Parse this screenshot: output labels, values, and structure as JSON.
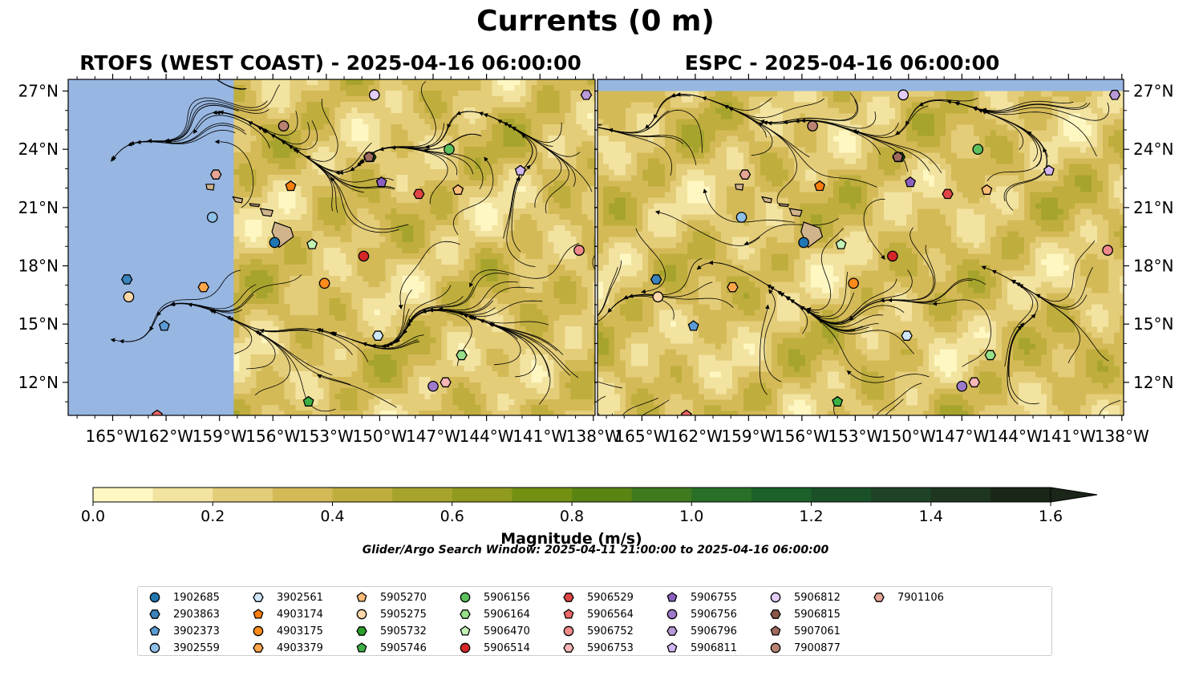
{
  "figure": {
    "title": "Currents (0 m)",
    "search_window": "Glider/Argo Search Window: 2025-04-11 21:00:00 to 2025-04-16 06:00:00"
  },
  "colors": {
    "land": "#d2b48c",
    "no_data_ocean": "#97b6e1",
    "colormap": [
      "#fef7c2",
      "#f2e3a0",
      "#e4cd79",
      "#d4ba57",
      "#bfae3d",
      "#a7a42d",
      "#8f9a1e",
      "#739012",
      "#5a8513",
      "#3f7a1f",
      "#2a6f27",
      "#1b6129",
      "#1a5128",
      "#1f4326",
      "#1e3520",
      "#1a2618"
    ]
  },
  "chart_data": [
    {
      "type": "heatmap",
      "title": "RTOFS (WEST COAST) - 2025-04-16 06:00:00",
      "xlim": [
        -167.5,
        -137.9
      ],
      "ylim": [
        10.3,
        27.6
      ],
      "xticks": [
        -165,
        -162,
        -159,
        -156,
        -153,
        -150,
        -147,
        -144,
        -141,
        -138
      ],
      "xtick_labels": [
        "165°W",
        "162°W",
        "159°W",
        "156°W",
        "153°W",
        "150°W",
        "147°W",
        "144°W",
        "141°W",
        "138°W"
      ],
      "yticks": [
        12,
        15,
        18,
        21,
        24,
        27
      ],
      "ytick_labels": [
        "12°N",
        "15°N",
        "18°N",
        "21°N",
        "24°N",
        "27°N"
      ],
      "yaxis_side": "left",
      "data_extent_lon_west": -158.2,
      "streamlines": true,
      "platforms": [
        {
          "id": "1902685",
          "lon": -155.9,
          "lat": 19.2
        },
        {
          "id": "2903863",
          "lon": -164.2,
          "lat": 17.3
        },
        {
          "id": "3902373",
          "lon": -162.1,
          "lat": 14.9
        },
        {
          "id": "3902559",
          "lon": -159.4,
          "lat": 20.5
        },
        {
          "id": "3902561",
          "lon": -150.1,
          "lat": 14.4
        },
        {
          "id": "4903174",
          "lon": -155.0,
          "lat": 22.1
        },
        {
          "id": "4903175",
          "lon": -153.1,
          "lat": 17.1
        },
        {
          "id": "4903379",
          "lon": -159.9,
          "lat": 16.9
        },
        {
          "id": "5905270",
          "lon": -145.6,
          "lat": 21.9
        },
        {
          "id": "5905275",
          "lon": -164.1,
          "lat": 16.4
        },
        {
          "id": "5905732",
          "lon": -150.5,
          "lat": 23.6
        },
        {
          "id": "5905746",
          "lon": -154.0,
          "lat": 11.0
        },
        {
          "id": "5906156",
          "lon": -146.1,
          "lat": 24.0
        },
        {
          "id": "5906164",
          "lon": -145.4,
          "lat": 13.4
        },
        {
          "id": "5906470",
          "lon": -153.8,
          "lat": 19.1
        },
        {
          "id": "5906514",
          "lon": -150.9,
          "lat": 18.5
        },
        {
          "id": "5906529",
          "lon": -147.8,
          "lat": 21.7
        },
        {
          "id": "5906564",
          "lon": -162.5,
          "lat": 10.3
        },
        {
          "id": "5906752",
          "lon": -138.8,
          "lat": 18.8
        },
        {
          "id": "5906753",
          "lon": -146.3,
          "lat": 12.0
        },
        {
          "id": "5906755",
          "lon": -149.9,
          "lat": 22.3
        },
        {
          "id": "5906756",
          "lon": -147.0,
          "lat": 11.8
        },
        {
          "id": "5906796",
          "lon": -138.4,
          "lat": 26.8
        },
        {
          "id": "5906811",
          "lon": -142.1,
          "lat": 22.9
        },
        {
          "id": "5906812",
          "lon": -150.3,
          "lat": 26.8
        },
        {
          "id": "5906815",
          "lon": -150.6,
          "lat": 23.6
        },
        {
          "id": "5907061",
          "lon": -150.6,
          "lat": 23.6
        },
        {
          "id": "7900877",
          "lon": -155.4,
          "lat": 25.2
        },
        {
          "id": "7901106",
          "lon": -159.2,
          "lat": 22.7
        }
      ]
    },
    {
      "type": "heatmap",
      "title": "ESPC - 2025-04-16 06:00:00",
      "xlim": [
        -167.5,
        -137.9
      ],
      "ylim": [
        10.3,
        27.6
      ],
      "xticks": [
        -165,
        -162,
        -159,
        -156,
        -153,
        -150,
        -147,
        -144,
        -141,
        -138
      ],
      "xtick_labels": [
        "165°W",
        "162°W",
        "159°W",
        "156°W",
        "153°W",
        "150°W",
        "147°W",
        "144°W",
        "141°W",
        "138°W"
      ],
      "yticks": [
        12,
        15,
        18,
        21,
        24,
        27
      ],
      "ytick_labels": [
        "12°N",
        "15°N",
        "18°N",
        "21°N",
        "24°N",
        "27°N"
      ],
      "yaxis_side": "right",
      "data_extent_lat_north": 27.0,
      "streamlines": true,
      "platforms": [
        {
          "id": "1902685",
          "lon": -155.9,
          "lat": 19.2
        },
        {
          "id": "2903863",
          "lon": -164.2,
          "lat": 17.3
        },
        {
          "id": "3902373",
          "lon": -162.1,
          "lat": 14.9
        },
        {
          "id": "3902559",
          "lon": -159.4,
          "lat": 20.5
        },
        {
          "id": "3902561",
          "lon": -150.1,
          "lat": 14.4
        },
        {
          "id": "4903174",
          "lon": -155.0,
          "lat": 22.1
        },
        {
          "id": "4903175",
          "lon": -153.1,
          "lat": 17.1
        },
        {
          "id": "4903379",
          "lon": -159.9,
          "lat": 16.9
        },
        {
          "id": "5905270",
          "lon": -145.6,
          "lat": 21.9
        },
        {
          "id": "5905275",
          "lon": -164.1,
          "lat": 16.4
        },
        {
          "id": "5905732",
          "lon": -150.5,
          "lat": 23.6
        },
        {
          "id": "5905746",
          "lon": -154.0,
          "lat": 11.0
        },
        {
          "id": "5906156",
          "lon": -146.1,
          "lat": 24.0
        },
        {
          "id": "5906164",
          "lon": -145.4,
          "lat": 13.4
        },
        {
          "id": "5906470",
          "lon": -153.8,
          "lat": 19.1
        },
        {
          "id": "5906514",
          "lon": -150.9,
          "lat": 18.5
        },
        {
          "id": "5906529",
          "lon": -147.8,
          "lat": 21.7
        },
        {
          "id": "5906564",
          "lon": -162.5,
          "lat": 10.3
        },
        {
          "id": "5906752",
          "lon": -138.8,
          "lat": 18.8
        },
        {
          "id": "5906753",
          "lon": -146.3,
          "lat": 12.0
        },
        {
          "id": "5906755",
          "lon": -149.9,
          "lat": 22.3
        },
        {
          "id": "5906756",
          "lon": -147.0,
          "lat": 11.8
        },
        {
          "id": "5906796",
          "lon": -138.4,
          "lat": 26.8
        },
        {
          "id": "5906811",
          "lon": -142.1,
          "lat": 22.9
        },
        {
          "id": "5906812",
          "lon": -150.3,
          "lat": 26.8
        },
        {
          "id": "5906815",
          "lon": -150.6,
          "lat": 23.6
        },
        {
          "id": "5907061",
          "lon": -150.6,
          "lat": 23.6
        },
        {
          "id": "7900877",
          "lon": -155.4,
          "lat": 25.2
        },
        {
          "id": "7901106",
          "lon": -159.2,
          "lat": 22.7
        }
      ]
    }
  ],
  "colorbar": {
    "label": "Magnitude (m/s)",
    "min": 0.0,
    "max": 1.6,
    "ticks": [
      0.0,
      0.2,
      0.4,
      0.6,
      0.8,
      1.0,
      1.2,
      1.4,
      1.6
    ],
    "tick_labels": [
      "0.0",
      "0.2",
      "0.4",
      "0.6",
      "0.8",
      "1.0",
      "1.2",
      "1.4",
      "1.6"
    ],
    "extend": "max"
  },
  "legend": {
    "columns": 9,
    "entries": [
      {
        "label": "1902685",
        "marker": "circle",
        "color": "#1f77b4"
      },
      {
        "label": "2903863",
        "marker": "hexagon",
        "color": "#3a83bd"
      },
      {
        "label": "3902373",
        "marker": "pentagon",
        "color": "#5a9bd4"
      },
      {
        "label": "3902559",
        "marker": "circle",
        "color": "#8fc0e8"
      },
      {
        "label": "3902561",
        "marker": "hexagon",
        "color": "#cfe6f7"
      },
      {
        "label": "4903174",
        "marker": "pentagon",
        "color": "#ff7f0e"
      },
      {
        "label": "4903175",
        "marker": "circle",
        "color": "#ff8c1a"
      },
      {
        "label": "4903379",
        "marker": "hexagon",
        "color": "#ffa64d"
      },
      {
        "label": "5905270",
        "marker": "pentagon",
        "color": "#ffbb78"
      },
      {
        "label": "5905275",
        "marker": "circle",
        "color": "#ffd7a8"
      },
      {
        "label": "5905732",
        "marker": "hexagon",
        "color": "#2ca02c"
      },
      {
        "label": "5905746",
        "marker": "pentagon",
        "color": "#3cb043"
      },
      {
        "label": "5906156",
        "marker": "circle",
        "color": "#5cc05c"
      },
      {
        "label": "5906164",
        "marker": "hexagon",
        "color": "#98df8a"
      },
      {
        "label": "5906470",
        "marker": "pentagon",
        "color": "#c2f2b5"
      },
      {
        "label": "5906514",
        "marker": "circle",
        "color": "#d62728"
      },
      {
        "label": "5906529",
        "marker": "hexagon",
        "color": "#e04545"
      },
      {
        "label": "5906564",
        "marker": "pentagon",
        "color": "#ee6666"
      },
      {
        "label": "5906752",
        "marker": "circle",
        "color": "#f08a8a"
      },
      {
        "label": "5906753",
        "marker": "hexagon",
        "color": "#f7b6b6"
      },
      {
        "label": "5906755",
        "marker": "pentagon",
        "color": "#8c5fbf"
      },
      {
        "label": "5906756",
        "marker": "circle",
        "color": "#9f7acb"
      },
      {
        "label": "5906796",
        "marker": "hexagon",
        "color": "#b89ad8"
      },
      {
        "label": "5906811",
        "marker": "pentagon",
        "color": "#d2b6ee"
      },
      {
        "label": "5906812",
        "marker": "circle",
        "color": "#e3ccf7"
      },
      {
        "label": "5906815",
        "marker": "hexagon",
        "color": "#8c564b"
      },
      {
        "label": "5907061",
        "marker": "pentagon",
        "color": "#a06a5e"
      },
      {
        "label": "7900877",
        "marker": "circle",
        "color": "#b98273"
      },
      {
        "label": "7901106",
        "marker": "hexagon",
        "color": "#e6a595"
      }
    ]
  }
}
